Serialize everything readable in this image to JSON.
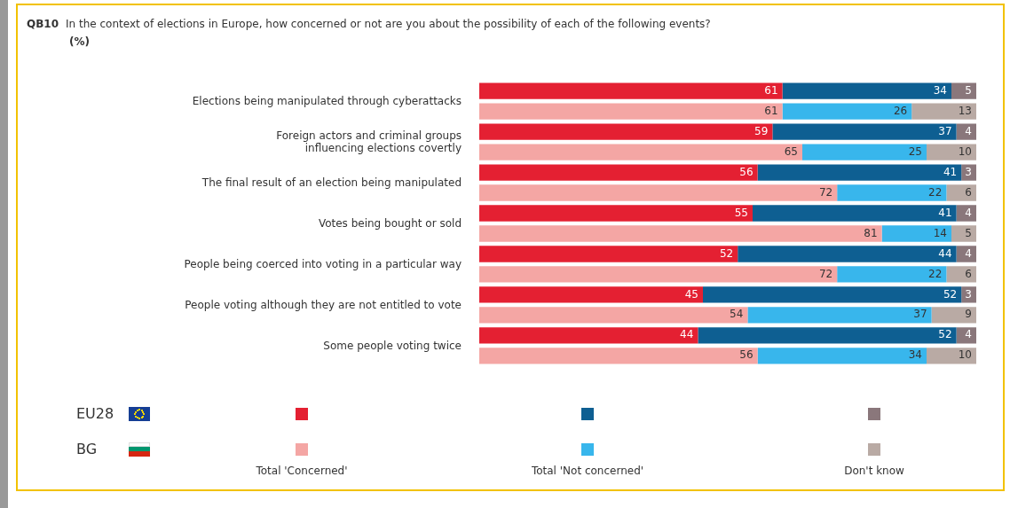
{
  "chart_data": {
    "type": "bar",
    "orientation": "horizontal",
    "stacked": true,
    "title": "QB10 In the context of elections in Europe, how concerned or not are you about the possibility of each of the following events?",
    "subtitle": "(%)",
    "categories": [
      "Elections being manipulated through cyberattacks",
      null,
      "Foreign actors and criminal groups\ninfluencing elections covertly",
      null,
      "The final result of an election being manipulated",
      null,
      "Votes being bought or sold",
      null,
      "People being coerced into voting in a particular way",
      null,
      "People voting although they are not entitled to vote",
      null,
      "Some people voting twice",
      null
    ],
    "series": [
      {
        "name": "Total 'Concerned'",
        "color": "#e42032",
        "colors": [
          "#e42032",
          "#f4a6a4",
          "#e42032",
          "#f4a6a4",
          "#e42032",
          "#f4a6a4",
          "#e42032",
          "#f4a6a4",
          "#e42032",
          "#f4a6a4",
          "#e42032",
          "#f4a6a4",
          "#e42032",
          "#f4a6a4"
        ],
        "values": [
          61,
          61,
          59,
          65,
          56,
          72,
          55,
          81,
          52,
          72,
          45,
          54,
          44,
          56
        ]
      },
      {
        "name": "Total 'Not concerned'",
        "color": "#0e5f92",
        "colors": [
          "#0e5f92",
          "#38b6ec",
          "#0e5f92",
          "#38b6ec",
          "#0e5f92",
          "#38b6ec",
          "#0e5f92",
          "#38b6ec",
          "#0e5f92",
          "#38b6ec",
          "#0e5f92",
          "#38b6ec",
          "#0e5f92",
          "#38b6ec"
        ],
        "values": [
          34,
          26,
          37,
          25,
          41,
          22,
          41,
          14,
          44,
          22,
          52,
          37,
          52,
          34
        ]
      },
      {
        "name": "Don't know",
        "color": "#8a777b",
        "colors": [
          "#8a777b",
          "#b9aaa4",
          "#8a777b",
          "#b9aaa4",
          "#8a777b",
          "#b9aaa4",
          "#8a777b",
          "#b9aaa4",
          "#8a777b",
          "#b9aaa4",
          "#8a777b",
          "#b9aaa4",
          "#8a777b",
          "#b9aaa4"
        ],
        "values": [
          5,
          13,
          4,
          10,
          3,
          6,
          4,
          5,
          4,
          6,
          3,
          9,
          4,
          10
        ]
      }
    ],
    "xlim": [
      0,
      100
    ],
    "tick_labels": "y",
    "legend": "bottom",
    "data_labels": true,
    "annotations": [
      "EU28",
      "BG"
    ]
  }
}
